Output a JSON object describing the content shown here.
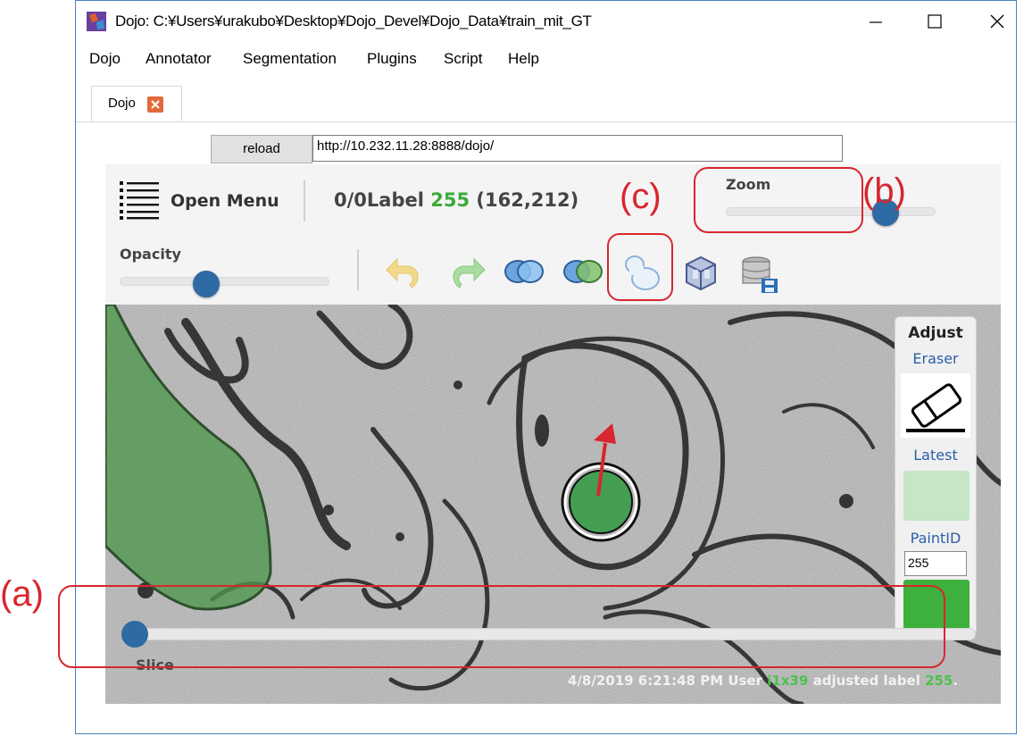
{
  "window": {
    "title": "Dojo: C:¥Users¥urakubo¥Desktop¥Dojo_Devel¥Dojo_Data¥train_mit_GT"
  },
  "menubar": {
    "items": [
      "Dojo",
      "Annotator",
      "Segmentation",
      "Plugins",
      "Script",
      "Help"
    ]
  },
  "tab": {
    "label": "Dojo"
  },
  "addressbar": {
    "reload_label": "reload",
    "url": "http://10.232.11.28:8888/dojo/"
  },
  "toolbar": {
    "open_menu_label": "Open Menu",
    "label_prefix": "0/0Label ",
    "label_id": "255",
    "label_coords": " (162,212)",
    "zoom_title": "Zoom",
    "zoom_level": 0.8,
    "opacity_title": "Opacity",
    "opacity_level": 0.4,
    "tool_icons": [
      "undo-icon",
      "redo-icon",
      "merge-icon",
      "split-icon",
      "adjust-icon",
      "3d-view-icon",
      "save-icon"
    ]
  },
  "adjust_panel": {
    "title": "Adjust",
    "eraser_label": "Eraser",
    "latest_label": "Latest",
    "paint_id_label": "PaintID",
    "paint_id_value": "255",
    "latest_color": "#c6e6c6",
    "paint_color": "#3db03d"
  },
  "slice": {
    "label": "Slice",
    "level": 0.0
  },
  "status": {
    "datetime": "4/8/2019 6:21:48 PM User ",
    "user": "i1x39",
    "action": " adjusted label ",
    "label": "255",
    "end": "."
  },
  "annotations": {
    "a": "(a)",
    "b": "(b)",
    "c": "(c)"
  },
  "colors": {
    "accent": "#2e6aa3",
    "annotation": "#d8262e",
    "segment": "#3aaa3a"
  }
}
